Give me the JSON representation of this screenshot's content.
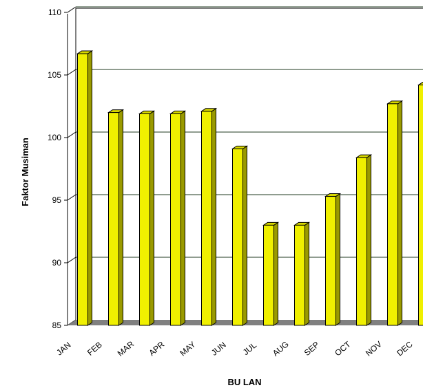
{
  "chart_data": {
    "type": "bar",
    "title": "",
    "xlabel": "BU LAN",
    "ylabel": "Faktor Musiman",
    "categories": [
      "JAN",
      "FEB",
      "MAR",
      "APR",
      "MAY",
      "JUN",
      "JUL",
      "AUG",
      "SEP",
      "OCT",
      "NOV",
      "DEC"
    ],
    "series": [
      {
        "values": [
          106.7,
          102.0,
          101.9,
          101.9,
          102.1,
          99.1,
          93.0,
          93.0,
          95.3,
          98.4,
          102.7,
          104.2
        ],
        "color": "#f0f000"
      }
    ],
    "ylim": [
      85,
      110
    ],
    "yticks": [
      85,
      90,
      95,
      100,
      105,
      110
    ],
    "grid": true,
    "legend": "none",
    "style": "3d-bar",
    "colors": {
      "bar_front": "#f0f000",
      "bar_side": "#9a9a00",
      "bar_top": "#d8d800",
      "floor": "#808080",
      "grid": "#1f3a1f"
    }
  }
}
